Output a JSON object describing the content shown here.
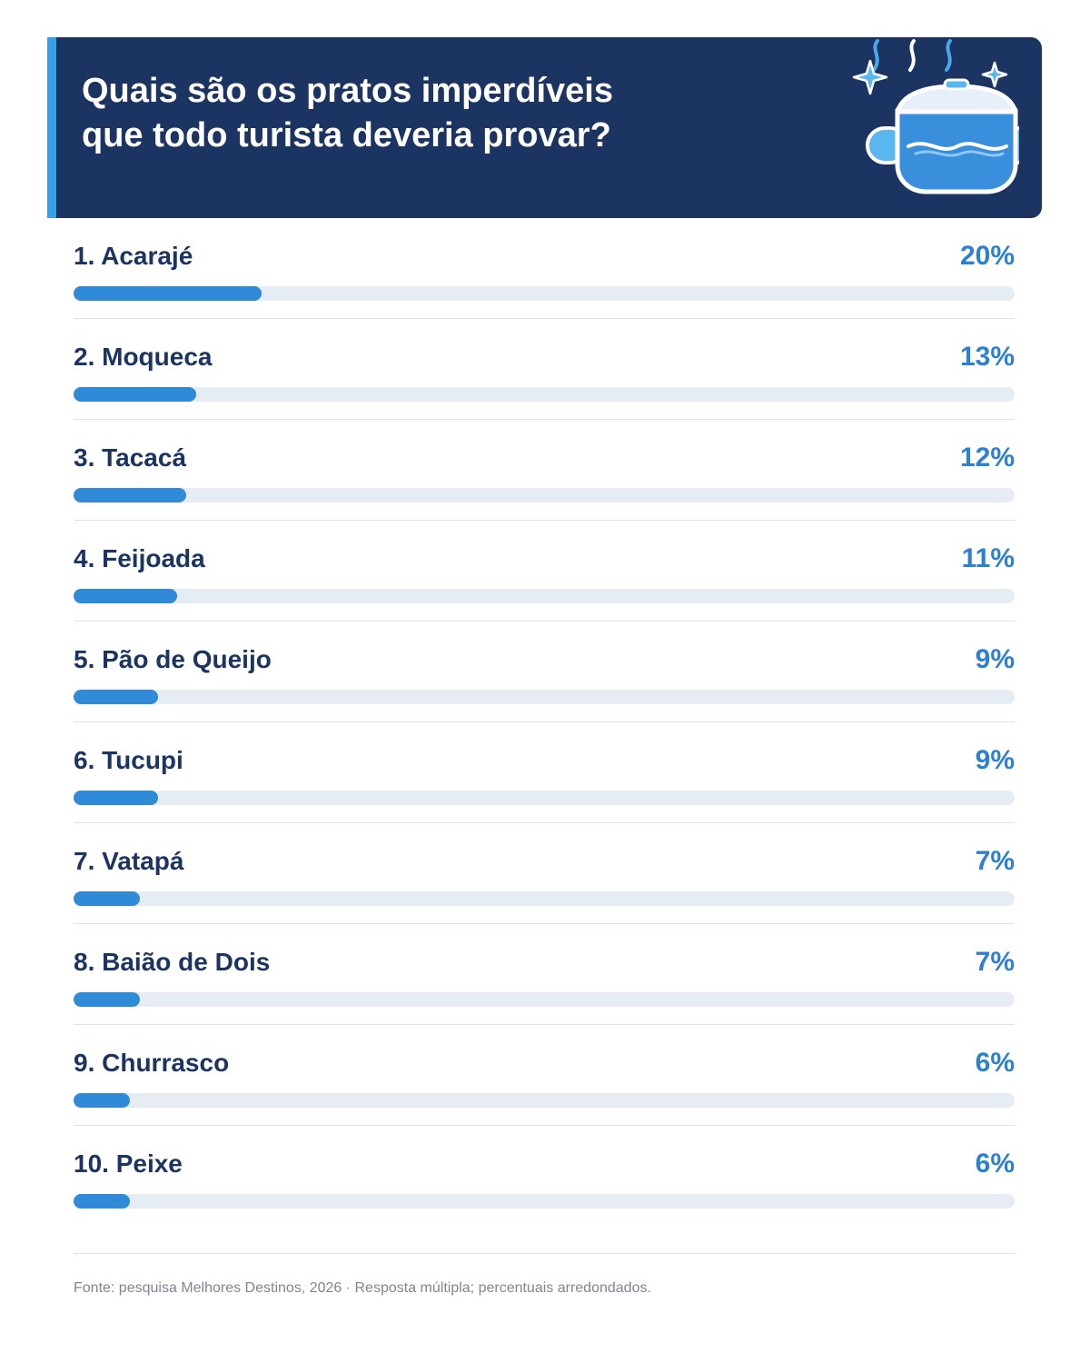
{
  "header": {
    "title": "Quais são os pratos imperdíveis\nque todo turista deveria provar?",
    "icon": "cooking-pot-icon"
  },
  "colors": {
    "header_bg": "#1b3461",
    "accent": "#3aa0e6",
    "bar_fill": "#2f8ad8",
    "bar_track": "#e6ecf3",
    "label_text": "#1b3461",
    "percent_text": "#2b7fd4"
  },
  "chart_data": {
    "type": "bar",
    "orientation": "horizontal",
    "categories": [
      "1. Acarajé",
      "2. Moqueca",
      "3. Tacacá",
      "4. Feijoada",
      "5. Pão de Queijo",
      "6. Tucupi",
      "7. Vatapá",
      "8. Baião de Dois",
      "9. Churrasco",
      "10. Peixe"
    ],
    "values": [
      20,
      13,
      12,
      11,
      9,
      9,
      7,
      7,
      6,
      6
    ],
    "value_labels": [
      "20%",
      "13%",
      "12%",
      "11%",
      "9%",
      "9%",
      "7%",
      "7%",
      "6%",
      "6%"
    ],
    "xlim": [
      0,
      100
    ],
    "grid": false
  },
  "footer": {
    "source": "Fonte: pesquisa Melhores Destinos, 2026 · Resposta múltipla; percentuais arredondados."
  }
}
